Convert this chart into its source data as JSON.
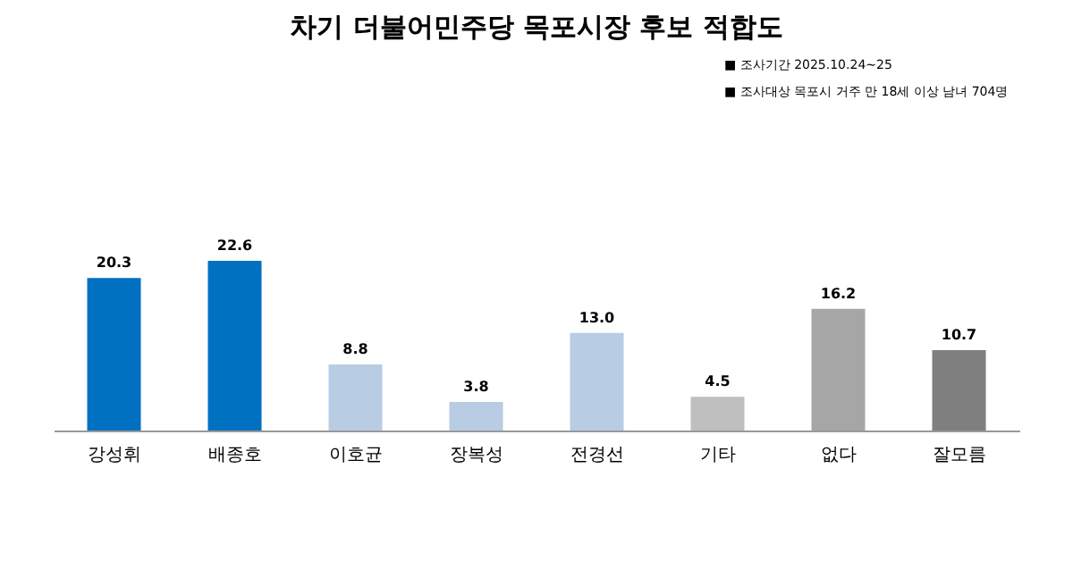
{
  "chart_data": {
    "type": "bar",
    "title": "차기 더불어민주당 목포시장 후보 적합도",
    "categories": [
      "강성휘",
      "배종호",
      "이호균",
      "장복성",
      "전경선",
      "기타",
      "없다",
      "잘모름"
    ],
    "values": [
      20.3,
      22.6,
      8.8,
      3.8,
      13.0,
      4.5,
      16.2,
      10.7
    ],
    "colors": [
      "#0070c0",
      "#0070c0",
      "#b8cce4",
      "#b8cce4",
      "#b8cce4",
      "#bfbfbf",
      "#a6a6a6",
      "#7f7f7f"
    ],
    "value_labels": [
      "20.3",
      "22.6",
      "8.8",
      "3.8",
      "13.0",
      "4.5",
      "16.2",
      "10.7"
    ],
    "annotations": [
      "■ 조사기간 2025.10.24~25",
      "■ 조사대상 목포시 거주 만 18세 이상 남녀 704명"
    ]
  }
}
